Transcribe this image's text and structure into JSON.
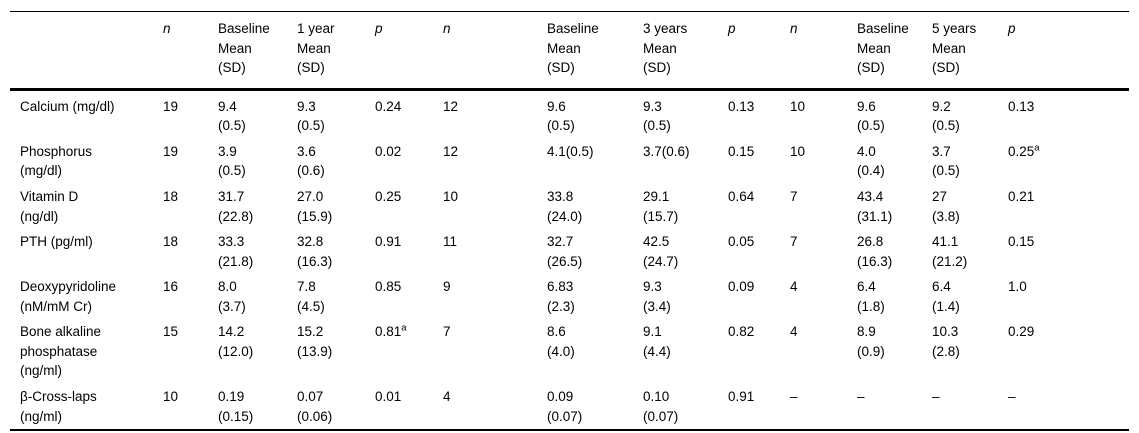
{
  "table": {
    "footnote_marker": "a",
    "missing_value": "–",
    "columns": [
      {
        "header": ""
      },
      {
        "header": "n",
        "italic": true
      },
      {
        "header": "Baseline\nMean\n(SD)"
      },
      {
        "header": "1 year\nMean\n(SD)"
      },
      {
        "header": "p",
        "italic": true
      },
      {
        "header": "n",
        "italic": true
      },
      {
        "header": "Baseline\nMean\n(SD)"
      },
      {
        "header": "3 years\nMean\n(SD)"
      },
      {
        "header": "p",
        "italic": true
      },
      {
        "header": "n",
        "italic": true
      },
      {
        "header": "Baseline\nMean\n(SD)"
      },
      {
        "header": "5 years\nMean\n(SD)"
      },
      {
        "header": "p",
        "italic": true
      }
    ],
    "rows": [
      {
        "label": "Calcium (mg/dl)",
        "cells": [
          "19",
          "9.4\n(0.5)",
          "9.3\n(0.5)",
          "0.24",
          "12",
          "9.6\n(0.5)",
          "9.3\n(0.5)",
          "0.13",
          "10",
          "9.6\n(0.5)",
          "9.2\n(0.5)",
          "0.13"
        ]
      },
      {
        "label": "Phosphorus\n(mg/dl)",
        "cells": [
          "19",
          "3.9\n(0.5)",
          "3.6\n(0.6)",
          "0.02",
          "12",
          "4.1(0.5)",
          "3.7(0.6)",
          "0.15",
          "10",
          "4.0\n(0.4)",
          "3.7\n(0.5)",
          {
            "text": "0.25",
            "sup": "a"
          }
        ]
      },
      {
        "label": "Vitamin D\n(ng/dl)",
        "cells": [
          "18",
          "31.7\n(22.8)",
          "27.0\n(15.9)",
          "0.25",
          "10",
          "33.8\n(24.0)",
          "29.1\n(15.7)",
          "0.64",
          "7",
          "43.4\n(31.1)",
          "27\n(3.8)",
          "0.21"
        ]
      },
      {
        "label": "PTH (pg/ml)",
        "cells": [
          "18",
          "33.3\n(21.8)",
          "32.8\n(16.3)",
          "0.91",
          "11",
          "32.7\n(26.5)",
          "42.5\n(24.7)",
          "0.05",
          "7",
          "26.8\n(16.3)",
          "41.1\n(21.2)",
          "0.15"
        ]
      },
      {
        "label": "Deoxypyridoline\n(nM/mM Cr)",
        "cells": [
          "16",
          "8.0\n(3.7)",
          "7.8\n(4.5)",
          "0.85",
          "9",
          "6.83\n(2.3)",
          "9.3\n(3.4)",
          "0.09",
          "4",
          "6.4\n(1.8)",
          "6.4\n(1.4)",
          "1.0"
        ]
      },
      {
        "label": "Bone alkaline\nphosphatase\n(ng/ml)",
        "cells": [
          "15",
          "14.2\n(12.0)",
          "15.2\n(13.9)",
          {
            "text": "0.81",
            "sup": "a"
          },
          "7",
          "8.6\n(4.0)",
          "9.1\n(4.4)",
          "0.82",
          "4",
          "8.9\n(0.9)",
          "10.3\n(2.8)",
          "0.29"
        ]
      },
      {
        "label": "β-Cross-laps\n(ng/ml)",
        "cells": [
          "10",
          "0.19\n(0.15)",
          "0.07\n(0.06)",
          "0.01",
          "4",
          "0.09\n(0.07)",
          "0.10\n(0.07)",
          "0.91",
          "–",
          "–",
          "–",
          "–"
        ]
      }
    ]
  }
}
